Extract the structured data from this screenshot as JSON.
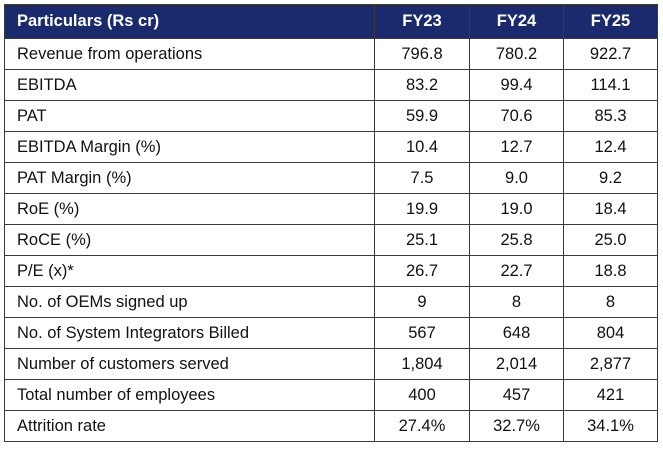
{
  "table": {
    "headers": [
      "Particulars (Rs cr)",
      "FY23",
      "FY24",
      "FY25"
    ],
    "rows": [
      {
        "label": "Revenue from operations",
        "values": [
          "796.8",
          "780.2",
          "922.7"
        ]
      },
      {
        "label": "EBITDA",
        "values": [
          "83.2",
          "99.4",
          "114.1"
        ]
      },
      {
        "label": "PAT",
        "values": [
          "59.9",
          "70.6",
          "85.3"
        ]
      },
      {
        "label": "EBITDA Margin (%)",
        "values": [
          "10.4",
          "12.7",
          "12.4"
        ]
      },
      {
        "label": "PAT Margin (%)",
        "values": [
          "7.5",
          "9.0",
          "9.2"
        ]
      },
      {
        "label": "RoE (%)",
        "values": [
          "19.9",
          "19.0",
          "18.4"
        ]
      },
      {
        "label": "RoCE (%)",
        "values": [
          "25.1",
          "25.8",
          "25.0"
        ]
      },
      {
        "label": "P/E (x)*",
        "values": [
          "26.7",
          "22.7",
          "18.8"
        ]
      },
      {
        "label": "No. of OEMs signed up",
        "values": [
          "9",
          "8",
          "8"
        ]
      },
      {
        "label": "No. of System Integrators Billed",
        "values": [
          "567",
          "648",
          "804"
        ]
      },
      {
        "label": "Number of customers served",
        "values": [
          "1,804",
          "2,014",
          "2,877"
        ]
      },
      {
        "label": "Total number of employees",
        "values": [
          "400",
          "457",
          "421"
        ]
      },
      {
        "label": "Attrition rate",
        "values": [
          "27.4%",
          "32.7%",
          "34.1%"
        ]
      }
    ]
  },
  "colors": {
    "header_bg": "#1a2a6c",
    "header_text": "#ffffff",
    "border": "#3a3a3a"
  }
}
